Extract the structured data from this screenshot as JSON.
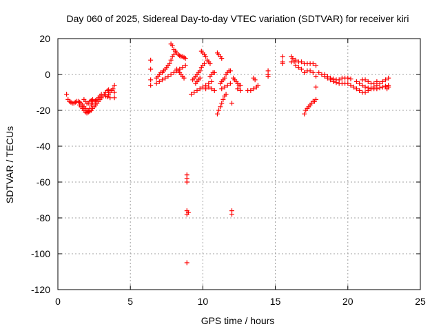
{
  "chart_data": {
    "type": "scatter",
    "title": "Day 060 of 2025, Sidereal Day-to-day VTEC variation (SDTVAR) for receiver kiri",
    "xlabel": "GPS time / hours",
    "ylabel": "SDTVAR / TECUs",
    "xlim": [
      0,
      25
    ],
    "ylim": [
      -120,
      20
    ],
    "xticks": [
      0,
      5,
      10,
      15,
      20,
      25
    ],
    "yticks": [
      -120,
      -100,
      -80,
      -60,
      -40,
      -20,
      0,
      20
    ],
    "grid": true,
    "marker": "+",
    "color": "#ff0000",
    "points": [
      [
        0.6,
        -11
      ],
      [
        0.7,
        -14
      ],
      [
        0.8,
        -15
      ],
      [
        0.9,
        -15.5
      ],
      [
        1.0,
        -16
      ],
      [
        1.1,
        -16
      ],
      [
        1.2,
        -15.5
      ],
      [
        1.3,
        -15
      ],
      [
        1.4,
        -15
      ],
      [
        1.5,
        -15.5
      ],
      [
        1.6,
        -16
      ],
      [
        1.7,
        -17
      ],
      [
        1.8,
        -18
      ],
      [
        1.9,
        -19
      ],
      [
        2.0,
        -20
      ],
      [
        2.1,
        -20.5
      ],
      [
        2.2,
        -20.5
      ],
      [
        2.3,
        -20
      ],
      [
        2.4,
        -19
      ],
      [
        2.5,
        -18
      ],
      [
        2.6,
        -17
      ],
      [
        2.7,
        -16
      ],
      [
        2.8,
        -15
      ],
      [
        2.9,
        -14
      ],
      [
        3.0,
        -13
      ],
      [
        3.1,
        -12
      ],
      [
        3.2,
        -11
      ],
      [
        3.3,
        -10
      ],
      [
        3.4,
        -9
      ],
      [
        3.5,
        -8.5
      ],
      [
        1.5,
        -17
      ],
      [
        1.6,
        -18
      ],
      [
        1.7,
        -19
      ],
      [
        1.8,
        -20
      ],
      [
        1.9,
        -21
      ],
      [
        2.0,
        -21.5
      ],
      [
        2.1,
        -21
      ],
      [
        2.2,
        -19
      ],
      [
        2.3,
        -17
      ],
      [
        2.4,
        -16
      ],
      [
        2.5,
        -15
      ],
      [
        2.6,
        -14.5
      ],
      [
        2.7,
        -14
      ],
      [
        2.8,
        -13
      ],
      [
        2.9,
        -12
      ],
      [
        3.0,
        -11
      ],
      [
        1.8,
        -14
      ],
      [
        1.9,
        -15
      ],
      [
        2.0,
        -16
      ],
      [
        2.1,
        -16
      ],
      [
        2.2,
        -15
      ],
      [
        2.3,
        -14.5
      ],
      [
        2.4,
        -14
      ],
      [
        3.3,
        -12
      ],
      [
        3.4,
        -12.5
      ],
      [
        3.5,
        -11
      ],
      [
        3.6,
        -10
      ],
      [
        3.7,
        -9
      ],
      [
        3.8,
        -8
      ],
      [
        3.9,
        -6
      ],
      [
        3.9,
        -10
      ],
      [
        3.9,
        -13
      ],
      [
        3.6,
        -13
      ],
      [
        6.4,
        8
      ],
      [
        6.4,
        3
      ],
      [
        6.4,
        -3
      ],
      [
        6.4,
        -6
      ],
      [
        6.8,
        -2
      ],
      [
        6.9,
        -1
      ],
      [
        7.0,
        0
      ],
      [
        7.1,
        1
      ],
      [
        7.2,
        1
      ],
      [
        7.3,
        2
      ],
      [
        7.4,
        3
      ],
      [
        7.5,
        4
      ],
      [
        7.6,
        5
      ],
      [
        7.7,
        6
      ],
      [
        7.8,
        8
      ],
      [
        7.9,
        10
      ],
      [
        8.0,
        11
      ],
      [
        6.8,
        -5
      ],
      [
        7.0,
        -4
      ],
      [
        7.2,
        -3
      ],
      [
        7.4,
        -2
      ],
      [
        7.6,
        -1
      ],
      [
        7.8,
        0
      ],
      [
        8.0,
        1
      ],
      [
        8.2,
        2
      ],
      [
        8.4,
        3
      ],
      [
        8.6,
        4
      ],
      [
        8.8,
        5
      ],
      [
        7.8,
        17
      ],
      [
        7.9,
        16
      ],
      [
        8.0,
        14
      ],
      [
        8.1,
        13
      ],
      [
        8.2,
        12
      ],
      [
        8.3,
        11
      ],
      [
        8.4,
        10.5
      ],
      [
        8.5,
        10
      ],
      [
        8.6,
        10
      ],
      [
        8.7,
        9.5
      ],
      [
        8.8,
        9
      ],
      [
        8.2,
        3
      ],
      [
        8.3,
        2
      ],
      [
        8.4,
        1
      ],
      [
        8.5,
        0
      ],
      [
        8.6,
        -1
      ],
      [
        8.7,
        -2
      ],
      [
        8.9,
        -56
      ],
      [
        8.9,
        -58
      ],
      [
        8.9,
        -60
      ],
      [
        8.9,
        -76
      ],
      [
        8.9,
        -78
      ],
      [
        9.0,
        -77
      ],
      [
        8.9,
        -105
      ],
      [
        9.2,
        -11
      ],
      [
        9.4,
        -10
      ],
      [
        9.6,
        -9
      ],
      [
        9.8,
        -8
      ],
      [
        10.0,
        -7
      ],
      [
        10.2,
        -6
      ],
      [
        10.4,
        -5
      ],
      [
        10.6,
        -4
      ],
      [
        9.3,
        -3
      ],
      [
        9.4,
        -2
      ],
      [
        9.5,
        -1
      ],
      [
        9.6,
        0
      ],
      [
        9.7,
        1
      ],
      [
        9.8,
        2
      ],
      [
        9.9,
        4
      ],
      [
        10.0,
        5
      ],
      [
        10.1,
        6
      ],
      [
        9.5,
        -5
      ],
      [
        9.6,
        -4
      ],
      [
        9.7,
        -3
      ],
      [
        9.8,
        -2
      ],
      [
        9.9,
        13
      ],
      [
        10.0,
        12
      ],
      [
        10.1,
        11
      ],
      [
        10.2,
        10
      ],
      [
        10.3,
        8
      ],
      [
        10.4,
        7
      ],
      [
        10.5,
        6
      ],
      [
        10.2,
        -8
      ],
      [
        10.4,
        -7
      ],
      [
        10.6,
        -8
      ],
      [
        10.8,
        -9
      ],
      [
        10.5,
        -1
      ],
      [
        10.6,
        0
      ],
      [
        10.7,
        1
      ],
      [
        10.8,
        1
      ],
      [
        11.0,
        12
      ],
      [
        11.1,
        11
      ],
      [
        11.2,
        10
      ],
      [
        11.3,
        9
      ],
      [
        11.0,
        -22
      ],
      [
        11.1,
        -20
      ],
      [
        11.2,
        -18
      ],
      [
        11.3,
        -16
      ],
      [
        11.4,
        -14
      ],
      [
        11.5,
        -12
      ],
      [
        11.6,
        -11
      ],
      [
        11.2,
        -5
      ],
      [
        11.3,
        -4
      ],
      [
        11.4,
        -3
      ],
      [
        11.5,
        -2
      ],
      [
        11.6,
        0
      ],
      [
        11.7,
        1
      ],
      [
        11.8,
        2
      ],
      [
        11.9,
        2
      ],
      [
        11.3,
        -8
      ],
      [
        11.5,
        -7
      ],
      [
        11.7,
        -6
      ],
      [
        11.9,
        -5
      ],
      [
        12.0,
        -16
      ],
      [
        12.0,
        -76
      ],
      [
        12.0,
        -78
      ],
      [
        12.1,
        -2
      ],
      [
        12.2,
        -3
      ],
      [
        12.3,
        -4
      ],
      [
        12.4,
        -5
      ],
      [
        12.5,
        -6
      ],
      [
        12.6,
        -6
      ],
      [
        12.4,
        -8
      ],
      [
        12.6,
        -9
      ],
      [
        13.1,
        -9
      ],
      [
        13.3,
        -9
      ],
      [
        13.5,
        -8
      ],
      [
        13.7,
        -7
      ],
      [
        13.8,
        -6
      ],
      [
        13.5,
        -2
      ],
      [
        13.6,
        -3
      ],
      [
        14.5,
        2
      ],
      [
        14.5,
        0
      ],
      [
        14.5,
        -1
      ],
      [
        15.5,
        10
      ],
      [
        15.5,
        7
      ],
      [
        15.5,
        6
      ],
      [
        16.1,
        10
      ],
      [
        16.1,
        7
      ],
      [
        16.2,
        9
      ],
      [
        16.3,
        7
      ],
      [
        16.4,
        8
      ],
      [
        16.6,
        7
      ],
      [
        16.8,
        7
      ],
      [
        17.0,
        6
      ],
      [
        17.2,
        6
      ],
      [
        17.4,
        6
      ],
      [
        17.6,
        6
      ],
      [
        17.8,
        5
      ],
      [
        16.4,
        5
      ],
      [
        16.6,
        4
      ],
      [
        16.8,
        3
      ],
      [
        17.0,
        -22
      ],
      [
        17.1,
        -20
      ],
      [
        17.2,
        -19
      ],
      [
        17.3,
        -18
      ],
      [
        17.4,
        -17
      ],
      [
        17.5,
        -16
      ],
      [
        17.6,
        -15
      ],
      [
        17.7,
        -15
      ],
      [
        17.8,
        -14
      ],
      [
        17.0,
        1
      ],
      [
        17.2,
        2
      ],
      [
        17.4,
        2
      ],
      [
        17.6,
        1
      ],
      [
        17.8,
        -1
      ],
      [
        17.8,
        -7
      ],
      [
        18.0,
        1
      ],
      [
        18.2,
        0
      ],
      [
        18.4,
        -1
      ],
      [
        18.6,
        -2
      ],
      [
        18.8,
        -3
      ],
      [
        19.0,
        -4
      ],
      [
        19.2,
        -4.5
      ],
      [
        19.4,
        -5
      ],
      [
        19.6,
        -5
      ],
      [
        19.8,
        -5
      ],
      [
        20.0,
        -5
      ],
      [
        18.4,
        0
      ],
      [
        18.6,
        -1
      ],
      [
        18.8,
        -2
      ],
      [
        19.0,
        -2.5
      ],
      [
        19.2,
        -3
      ],
      [
        19.4,
        -3
      ],
      [
        19.6,
        -2
      ],
      [
        19.8,
        -2
      ],
      [
        20.0,
        -2
      ],
      [
        20.2,
        -2.5
      ],
      [
        20.2,
        -6
      ],
      [
        20.4,
        -7
      ],
      [
        20.6,
        -8
      ],
      [
        20.8,
        -9
      ],
      [
        21.0,
        -10
      ],
      [
        21.2,
        -10
      ],
      [
        21.4,
        -9
      ],
      [
        21.6,
        -8
      ],
      [
        21.8,
        -7
      ],
      [
        22.0,
        -6
      ],
      [
        22.2,
        -5
      ],
      [
        22.4,
        -4
      ],
      [
        22.6,
        -3
      ],
      [
        22.8,
        -2
      ],
      [
        20.6,
        -4
      ],
      [
        20.8,
        -5
      ],
      [
        21.0,
        -6
      ],
      [
        21.2,
        -7
      ],
      [
        21.4,
        -7.5
      ],
      [
        21.6,
        -8
      ],
      [
        21.8,
        -8
      ],
      [
        22.0,
        -8
      ],
      [
        22.2,
        -7.5
      ],
      [
        22.4,
        -7
      ],
      [
        22.6,
        -6.5
      ],
      [
        22.8,
        -6
      ],
      [
        21.0,
        -3
      ],
      [
        21.2,
        -3
      ],
      [
        21.4,
        -4
      ],
      [
        21.6,
        -5
      ],
      [
        21.8,
        -5
      ],
      [
        22.0,
        -4
      ],
      [
        22.7,
        -8
      ],
      [
        22.8,
        -7
      ]
    ]
  }
}
